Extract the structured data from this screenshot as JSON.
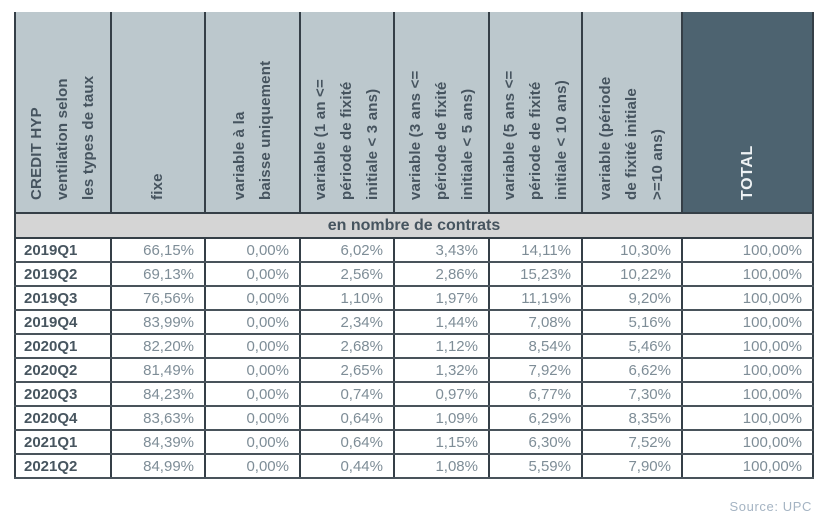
{
  "table": {
    "corner_header": "CREDIT HYP\nventilation selon\nles types de taux",
    "column_headers": [
      "fixe",
      "variable à la\nbaisse uniquement",
      "variable (1 an <=\npériode de fixité\ninitiale < 3 ans)",
      "variable (3 ans <=\npériode de fixité\ninitiale < 5 ans)",
      "variable (5 ans <=\npériode de fixité\ninitiale < 10 ans)",
      "variable (période\nde fixité initiale\n>=10 ans)",
      "TOTAL"
    ],
    "subheader": "en nombre de contrats",
    "colors": {
      "header_bg": "#bcc8cd",
      "header_text": "#46545f",
      "total_bg": "#4d6370",
      "total_text": "#eef2f4",
      "border": "#353f47",
      "subheader_bg": "#d5d5d5",
      "data_text": "#7e8d97",
      "label_text": "#47555f",
      "source_text": "#a5b4c3"
    }
  },
  "chart_data": {
    "type": "table",
    "title": "CREDIT HYP ventilation selon les types de taux",
    "section_label": "en nombre de contrats",
    "value_format": "percent with comma decimal separator, two decimals",
    "columns": [
      "fixe",
      "variable à la baisse uniquement",
      "variable (1 an <= période de fixité initiale < 3 ans)",
      "variable (3 ans <= période de fixité initiale < 5 ans)",
      "variable (5 ans <= période de fixité initiale < 10 ans)",
      "variable (période de fixité initiale >=10 ans)",
      "TOTAL"
    ],
    "rows": [
      {
        "label": "2019Q1",
        "values": [
          66.15,
          0.0,
          6.02,
          3.43,
          14.11,
          10.3,
          100.0
        ]
      },
      {
        "label": "2019Q2",
        "values": [
          69.13,
          0.0,
          2.56,
          2.86,
          15.23,
          10.22,
          100.0
        ]
      },
      {
        "label": "2019Q3",
        "values": [
          76.56,
          0.0,
          1.1,
          1.97,
          11.19,
          9.2,
          100.0
        ]
      },
      {
        "label": "2019Q4",
        "values": [
          83.99,
          0.0,
          2.34,
          1.44,
          7.08,
          5.16,
          100.0
        ]
      },
      {
        "label": "2020Q1",
        "values": [
          82.2,
          0.0,
          2.68,
          1.12,
          8.54,
          5.46,
          100.0
        ]
      },
      {
        "label": "2020Q2",
        "values": [
          81.49,
          0.0,
          2.65,
          1.32,
          7.92,
          6.62,
          100.0
        ]
      },
      {
        "label": "2020Q3",
        "values": [
          84.23,
          0.0,
          0.74,
          0.97,
          6.77,
          7.3,
          100.0
        ]
      },
      {
        "label": "2020Q4",
        "values": [
          83.63,
          0.0,
          0.64,
          1.09,
          6.29,
          8.35,
          100.0
        ]
      },
      {
        "label": "2021Q1",
        "values": [
          84.39,
          0.0,
          0.64,
          1.15,
          6.3,
          7.52,
          100.0
        ]
      },
      {
        "label": "2021Q2",
        "values": [
          84.99,
          0.0,
          0.44,
          1.08,
          5.59,
          7.9,
          100.0
        ]
      }
    ]
  },
  "source": {
    "label": "Source: UPC"
  }
}
